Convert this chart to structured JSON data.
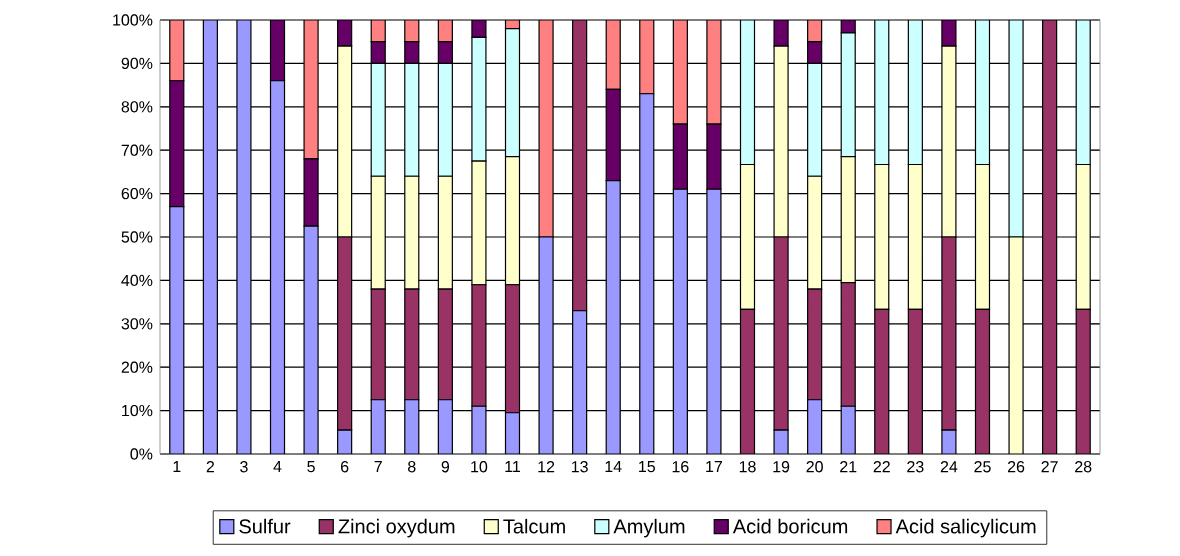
{
  "chart_data": {
    "type": "bar",
    "stacked": true,
    "categories": [
      "1",
      "2",
      "3",
      "4",
      "5",
      "6",
      "7",
      "8",
      "9",
      "10",
      "11",
      "12",
      "13",
      "14",
      "15",
      "16",
      "17",
      "18",
      "19",
      "20",
      "21",
      "22",
      "23",
      "24",
      "25",
      "26",
      "27",
      "28"
    ],
    "series": [
      {
        "name": "Sulfur",
        "color": "#9999ff",
        "values": [
          57,
          100,
          100,
          86,
          52.5,
          5.5,
          12.5,
          12.5,
          12.5,
          11,
          9.5,
          50,
          33,
          63,
          83,
          61,
          61,
          null,
          5.5,
          12.5,
          11,
          null,
          null,
          5.5,
          null,
          null,
          null,
          null
        ]
      },
      {
        "name": "Zinci oxydum",
        "color": "#993366",
        "values": [
          null,
          null,
          null,
          null,
          null,
          44.5,
          25.5,
          25.5,
          25.5,
          28,
          29.5,
          null,
          67,
          null,
          null,
          null,
          null,
          33.3,
          44.5,
          25.5,
          28.5,
          33.3,
          33.3,
          44.5,
          33.3,
          null,
          100,
          33.3
        ]
      },
      {
        "name": "Talcum",
        "color": "#ffffcc",
        "values": [
          null,
          null,
          null,
          null,
          null,
          44,
          26,
          26,
          26,
          28.5,
          29.5,
          null,
          null,
          null,
          null,
          null,
          null,
          33.4,
          44,
          26,
          29,
          33.4,
          33.4,
          44,
          33.4,
          50,
          null,
          33.4
        ]
      },
      {
        "name": "Amylum",
        "color": "#ccffff",
        "values": [
          null,
          null,
          null,
          null,
          null,
          null,
          26,
          26,
          26,
          28.5,
          29.5,
          null,
          null,
          null,
          null,
          null,
          null,
          33.3,
          null,
          26,
          28.5,
          33.3,
          33.3,
          null,
          33.3,
          50,
          null,
          33.3
        ]
      },
      {
        "name": "Acid boricum",
        "color": "#660066",
        "values": [
          29,
          null,
          null,
          14,
          15.5,
          6,
          5,
          5,
          5,
          4,
          null,
          null,
          null,
          21,
          null,
          15,
          15,
          null,
          6,
          5,
          3,
          null,
          null,
          6,
          null,
          null,
          null,
          null
        ]
      },
      {
        "name": "Acid salicylicum",
        "color": "#ff8080",
        "values": [
          14,
          null,
          null,
          null,
          32,
          null,
          5,
          5,
          5,
          null,
          2,
          50,
          null,
          16,
          17,
          24,
          24,
          null,
          null,
          5,
          null,
          null,
          null,
          null,
          null,
          null,
          null,
          null
        ]
      }
    ],
    "ylim": [
      0,
      100
    ],
    "yticks": [
      {
        "value": 0,
        "label": "0%"
      },
      {
        "value": 10,
        "label": "10%"
      },
      {
        "value": 20,
        "label": "20%"
      },
      {
        "value": 30,
        "label": "30%"
      },
      {
        "value": 40,
        "label": "40%"
      },
      {
        "value": 50,
        "label": "50%"
      },
      {
        "value": 60,
        "label": "60%"
      },
      {
        "value": 70,
        "label": "70%"
      },
      {
        "value": 80,
        "label": "80%"
      },
      {
        "value": 90,
        "label": "90%"
      },
      {
        "value": 100,
        "label": "100%"
      }
    ],
    "grid": "y",
    "legend": "bottom"
  }
}
